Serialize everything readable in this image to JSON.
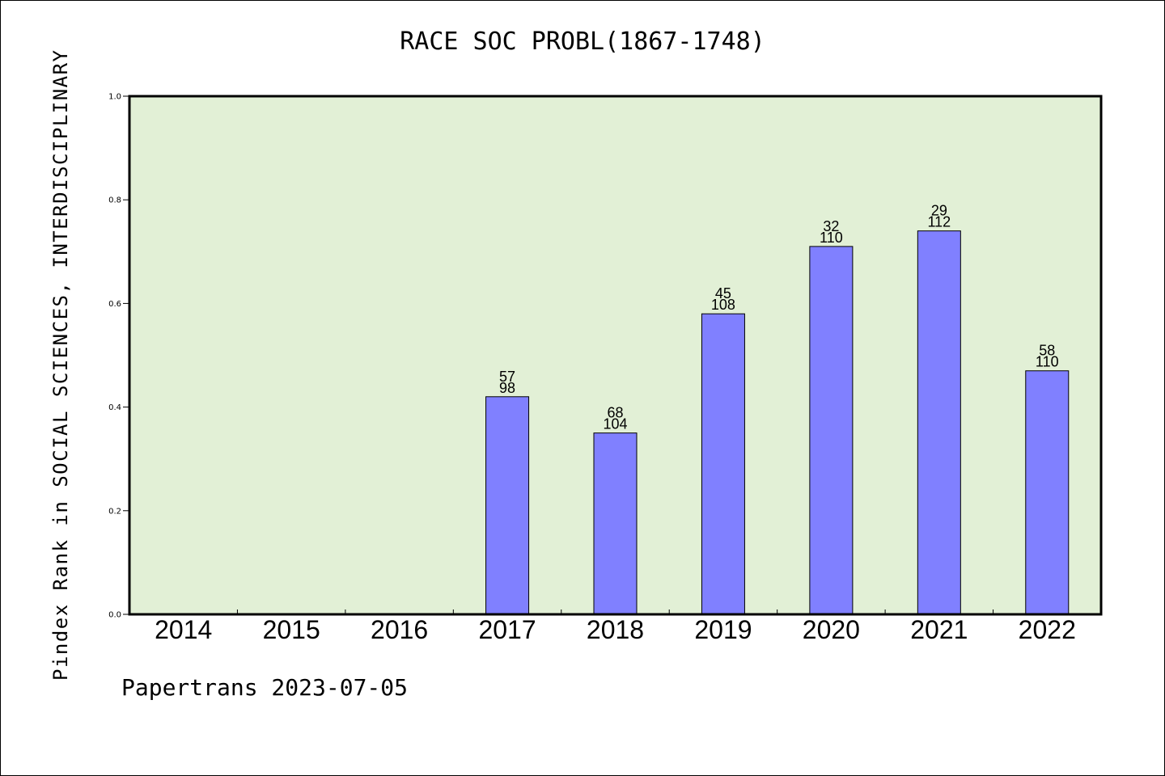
{
  "title": "RACE SOC PROBL(1867-1748)",
  "footer": "Papertrans 2023-07-05",
  "colors": {
    "plot_bg": "#e2f0d6",
    "bar": "#8080ff"
  },
  "chart_data": {
    "type": "bar",
    "title": "RACE SOC PROBL(1867-1748)",
    "ylabel": "Pindex Rank in SOCIAL SCIENCES, INTERDISCIPLINARY",
    "xlabel": "",
    "ylim": [
      0,
      1.0
    ],
    "yticks": [
      "0.0",
      "0.2",
      "0.4",
      "0.6",
      "0.8",
      "1.0"
    ],
    "categories": [
      "2014",
      "2015",
      "2016",
      "2017",
      "2018",
      "2019",
      "2020",
      "2021",
      "2022"
    ],
    "values": [
      null,
      null,
      null,
      0.42,
      0.35,
      0.58,
      0.71,
      0.74,
      0.47
    ],
    "labels_top": [
      "",
      "",
      "",
      "57",
      "68",
      "45",
      "32",
      "29",
      "58"
    ],
    "labels_bottom": [
      "",
      "",
      "",
      "98",
      "104",
      "108",
      "110",
      "112",
      "110"
    ],
    "grid": false,
    "legend": "none"
  }
}
